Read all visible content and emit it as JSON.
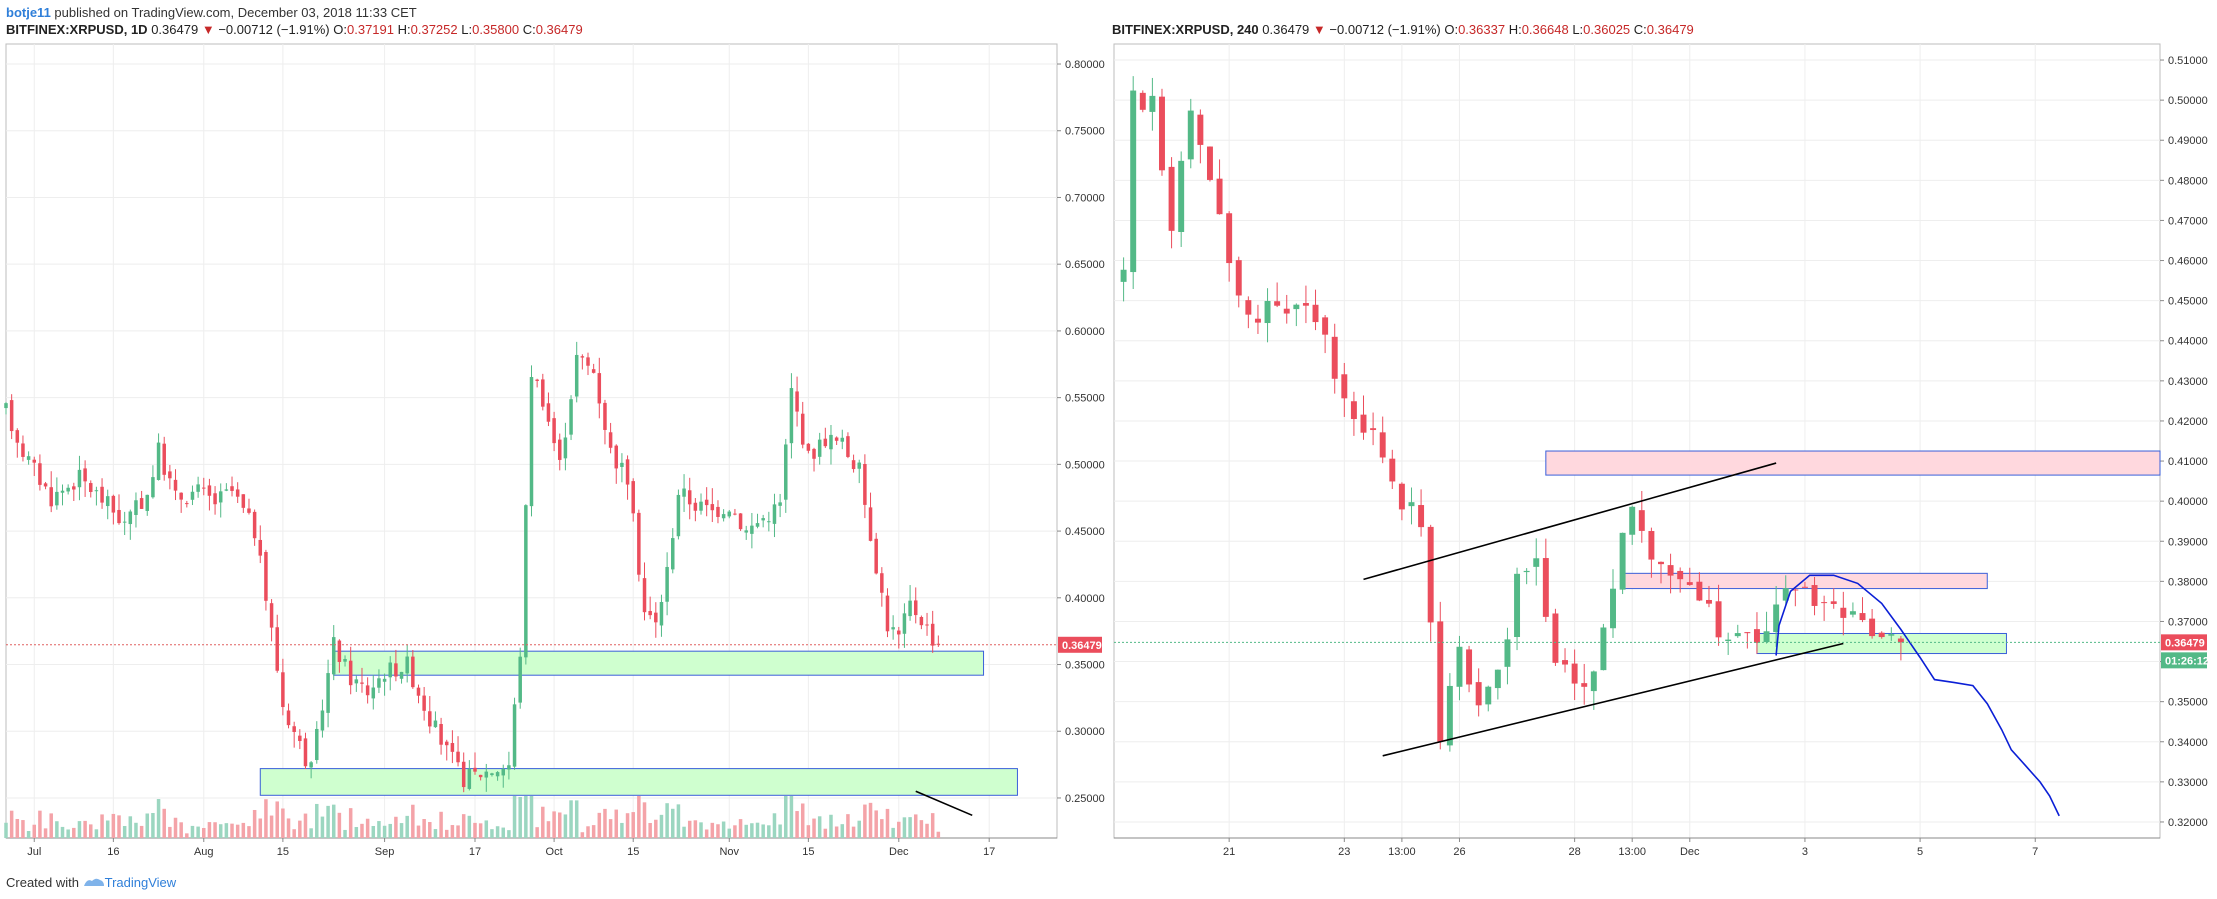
{
  "header": {
    "user": "botje11",
    "published_text": " published on TradingView.com, December 03, 2018 11:33 CET"
  },
  "footer": {
    "created_with": "Created with",
    "brand": "TradingView"
  },
  "colors": {
    "up": "#53b987",
    "down": "#eb4d5c",
    "vol_up": "#9bd6c0",
    "vol_down": "#f4a3a8",
    "zone_green": "#ccffcc",
    "zone_red": "#ffd6dc",
    "zone_border": "#3a5fd9",
    "trend": "#000000",
    "curve": "#0b1fd6",
    "price_tag": "#eb4d5c",
    "timer_tag": "#53b987"
  },
  "chart_data": [
    {
      "type": "candlestick",
      "legend": {
        "symbol": "BITFINEX:XRPUSD, 1D",
        "last": "0.36479",
        "change": "−0.00712 (−1.91%)",
        "open_label": "O:",
        "open": "0.37191",
        "high_label": "H:",
        "high": "0.37252",
        "low_label": "L:",
        "low": "0.35800",
        "close_label": "C:",
        "close": "0.36479"
      },
      "y_ticks": [
        "0.80000",
        "0.75000",
        "0.70000",
        "0.65000",
        "0.60000",
        "0.55000",
        "0.50000",
        "0.45000",
        "0.40000",
        "0.35000",
        "0.30000",
        "0.25000"
      ],
      "y_tick_values": [
        0.8,
        0.75,
        0.7,
        0.65,
        0.6,
        0.55,
        0.5,
        0.45,
        0.4,
        0.35,
        0.3,
        0.25
      ],
      "ylim": [
        0.22,
        0.815
      ],
      "x_ticks": [
        "Jul",
        "16",
        "Aug",
        "15",
        "Sep",
        "17",
        "Oct",
        "15",
        "Nov",
        "15",
        "Dec",
        "17"
      ],
      "x_tick_days": [
        2,
        16,
        32,
        46,
        64,
        80,
        94,
        108,
        125,
        139,
        155,
        171
      ],
      "xlim": [
        -3,
        183
      ],
      "last_price_label": "0.36479",
      "last_price": 0.36479,
      "zones": [
        {
          "d0": 55,
          "d1": 170,
          "top": 0.36,
          "bottom": 0.342,
          "kind": "green"
        },
        {
          "d0": 42,
          "d1": 176,
          "top": 0.272,
          "bottom": 0.252,
          "kind": "green"
        }
      ],
      "trend_lines": [
        {
          "d0": 158,
          "p0": 0.255,
          "d1": 168,
          "p1": 0.237
        }
      ],
      "anchors": [
        [
          -3,
          0.54
        ],
        [
          0,
          0.51
        ],
        [
          5,
          0.475
        ],
        [
          10,
          0.49
        ],
        [
          15,
          0.47
        ],
        [
          18,
          0.455
        ],
        [
          22,
          0.478
        ],
        [
          24,
          0.51
        ],
        [
          27,
          0.475
        ],
        [
          31,
          0.48
        ],
        [
          34,
          0.472
        ],
        [
          37,
          0.48
        ],
        [
          41,
          0.45
        ],
        [
          44,
          0.375
        ],
        [
          46,
          0.32
        ],
        [
          49,
          0.29
        ],
        [
          51,
          0.27
        ],
        [
          53,
          0.32
        ],
        [
          55,
          0.365
        ],
        [
          58,
          0.34
        ],
        [
          61,
          0.33
        ],
        [
          64,
          0.345
        ],
        [
          68,
          0.35
        ],
        [
          72,
          0.31
        ],
        [
          75,
          0.285
        ],
        [
          78,
          0.265
        ],
        [
          82,
          0.27
        ],
        [
          86,
          0.275
        ],
        [
          88,
          0.36
        ],
        [
          90,
          0.57
        ],
        [
          92,
          0.55
        ],
        [
          95,
          0.5
        ],
        [
          98,
          0.58
        ],
        [
          101,
          0.57
        ],
        [
          104,
          0.51
        ],
        [
          107,
          0.49
        ],
        [
          110,
          0.39
        ],
        [
          112,
          0.38
        ],
        [
          114,
          0.42
        ],
        [
          116,
          0.48
        ],
        [
          119,
          0.47
        ],
        [
          122,
          0.465
        ],
        [
          125,
          0.47
        ],
        [
          128,
          0.45
        ],
        [
          131,
          0.46
        ],
        [
          134,
          0.47
        ],
        [
          136,
          0.555
        ],
        [
          139,
          0.505
        ],
        [
          142,
          0.52
        ],
        [
          145,
          0.515
        ],
        [
          148,
          0.495
        ],
        [
          151,
          0.425
        ],
        [
          153,
          0.38
        ],
        [
          155,
          0.37
        ],
        [
          157,
          0.395
        ],
        [
          159,
          0.385
        ],
        [
          161,
          0.37
        ],
        [
          162,
          0.36479
        ]
      ]
    },
    {
      "type": "candlestick",
      "legend": {
        "symbol": "BITFINEX:XRPUSD, 240",
        "last": "0.36479",
        "change": "−0.00712 (−1.91%)",
        "open_label": "O:",
        "open": "0.36337",
        "high_label": "H:",
        "high": "0.36648",
        "low_label": "L:",
        "low": "0.36025",
        "close_label": "C:",
        "close": "0.36479"
      },
      "y_ticks": [
        "0.51000",
        "0.50000",
        "0.49000",
        "0.48000",
        "0.47000",
        "0.46000",
        "0.45000",
        "0.44000",
        "0.43000",
        "0.42000",
        "0.41000",
        "0.40000",
        "0.39000",
        "0.38000",
        "0.37000",
        "0.36000",
        "0.35000",
        "0.34000",
        "0.33000",
        "0.32000"
      ],
      "y_tick_values": [
        0.51,
        0.5,
        0.49,
        0.48,
        0.47,
        0.46,
        0.45,
        0.44,
        0.43,
        0.42,
        0.41,
        0.4,
        0.39,
        0.38,
        0.37,
        0.36,
        0.35,
        0.34,
        0.33,
        0.32
      ],
      "ylim": [
        0.316,
        0.514
      ],
      "x_ticks": [
        "21",
        "23",
        "13:00",
        "26",
        "28",
        "13:00",
        "Dec",
        "3",
        "5",
        "7"
      ],
      "x_tick_bars": [
        11,
        23,
        29,
        35,
        47,
        53,
        59,
        71,
        83,
        95
      ],
      "xlim": [
        -1,
        108
      ],
      "last_price_label": "0.36479",
      "last_price": 0.36479,
      "timer_label": "01:26:12",
      "zones": [
        {
          "b0": 44,
          "b1": 108,
          "top": 0.4125,
          "bottom": 0.4065,
          "kind": "red"
        },
        {
          "b0": 52,
          "b1": 90,
          "top": 0.382,
          "bottom": 0.3782,
          "kind": "red"
        },
        {
          "b0": 66,
          "b1": 92,
          "top": 0.367,
          "bottom": 0.362,
          "kind": "green"
        }
      ],
      "trend_lines": [
        {
          "b0": 25,
          "p0": 0.3805,
          "b1": 68,
          "p1": 0.4095
        },
        {
          "b0": 27,
          "p0": 0.3365,
          "b1": 75,
          "p1": 0.3645
        }
      ],
      "curve": [
        [
          68,
          0.3615
        ],
        [
          68.3,
          0.369
        ],
        [
          69.5,
          0.3775
        ],
        [
          71.5,
          0.3815
        ],
        [
          74,
          0.3815
        ],
        [
          76.5,
          0.3795
        ],
        [
          79,
          0.3745
        ],
        [
          81,
          0.368
        ],
        [
          83,
          0.361
        ],
        [
          84.5,
          0.3555
        ],
        [
          86.5,
          0.3548
        ],
        [
          88.5,
          0.354
        ],
        [
          90,
          0.3495
        ],
        [
          91.5,
          0.343
        ],
        [
          92.5,
          0.338
        ],
        [
          94,
          0.334
        ],
        [
          95.5,
          0.33
        ],
        [
          96.5,
          0.3265
        ],
        [
          97.5,
          0.3215
        ]
      ],
      "anchors": [
        [
          0,
          0.455
        ],
        [
          1,
          0.5
        ],
        [
          3,
          0.501
        ],
        [
          5,
          0.47
        ],
        [
          7,
          0.5
        ],
        [
          9,
          0.48
        ],
        [
          11,
          0.46
        ],
        [
          13,
          0.445
        ],
        [
          15,
          0.45
        ],
        [
          17,
          0.445
        ],
        [
          19,
          0.45
        ],
        [
          21,
          0.44
        ],
        [
          23,
          0.425
        ],
        [
          25,
          0.42
        ],
        [
          27,
          0.41
        ],
        [
          29,
          0.4
        ],
        [
          31,
          0.395
        ],
        [
          33,
          0.34
        ],
        [
          35,
          0.362
        ],
        [
          37,
          0.35
        ],
        [
          39,
          0.357
        ],
        [
          41,
          0.38
        ],
        [
          43,
          0.385
        ],
        [
          45,
          0.36
        ],
        [
          47,
          0.354
        ],
        [
          49,
          0.358
        ],
        [
          51,
          0.38
        ],
        [
          53,
          0.399
        ],
        [
          55,
          0.388
        ],
        [
          57,
          0.383
        ],
        [
          59,
          0.378
        ],
        [
          61,
          0.372
        ],
        [
          63,
          0.363
        ],
        [
          65,
          0.366
        ],
        [
          67,
          0.369
        ],
        [
          69,
          0.378
        ],
        [
          71,
          0.377
        ],
        [
          73,
          0.375
        ],
        [
          75,
          0.371
        ],
        [
          77,
          0.372
        ],
        [
          79,
          0.364
        ],
        [
          81,
          0.36479
        ]
      ]
    }
  ]
}
